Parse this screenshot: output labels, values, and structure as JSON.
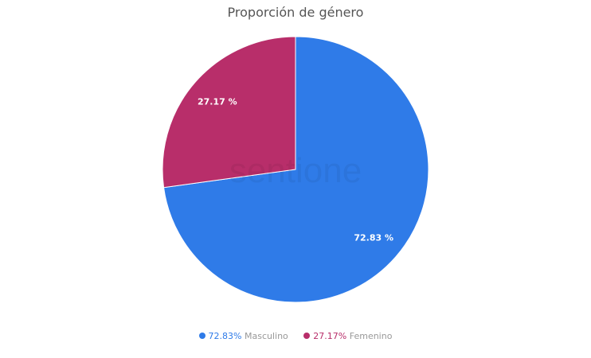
{
  "chart_data": {
    "type": "pie",
    "title": "Proporción de género",
    "slices": [
      {
        "name": "Masculino",
        "value": 72.83,
        "label": "72.83 %",
        "legend_value": "72.83%",
        "color": "#2F7BE8"
      },
      {
        "name": "Femenino",
        "value": 27.17,
        "label": "27.17 %",
        "legend_value": "27.17%",
        "color": "#B82E6A"
      }
    ],
    "legend_placement": "bottom",
    "watermark": "sentione"
  }
}
